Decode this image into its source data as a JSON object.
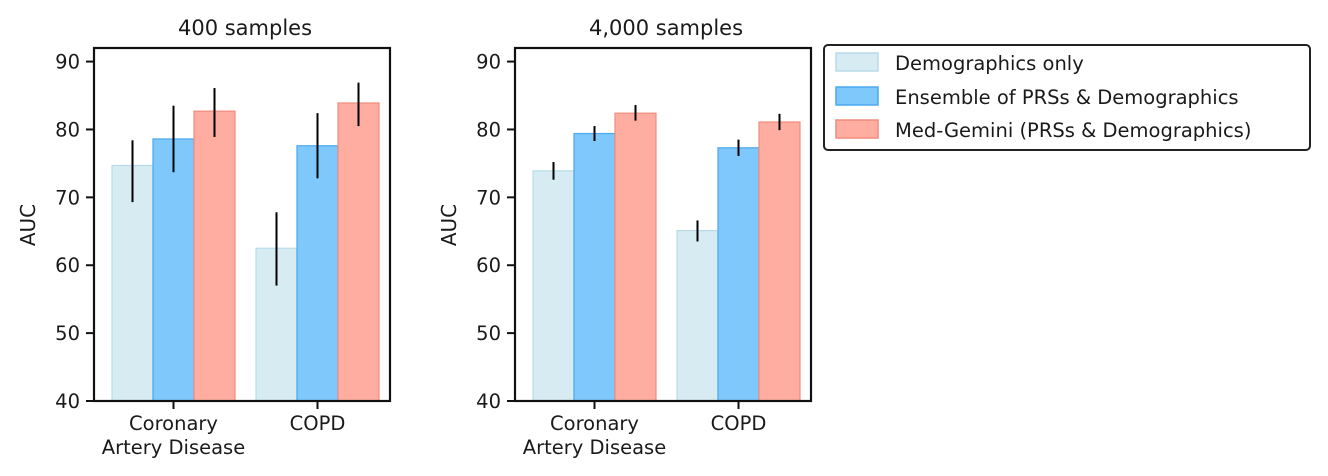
{
  "colors": {
    "demographics": "#d6ebf2",
    "demographics_edge": "#b9dbe8",
    "ensemble": "#7ec8fc",
    "ensemble_edge": "#4aa8ee",
    "medgemini": "#feada0",
    "medgemini_edge": "#f08c7c"
  },
  "chart_data": [
    {
      "type": "bar",
      "title": "400 samples",
      "ylabel": "AUC",
      "ylim": [
        40,
        92
      ],
      "yticks": [
        "40",
        "50",
        "60",
        "70",
        "80",
        "90"
      ],
      "categories": [
        {
          "line1": "Coronary",
          "line2": "Artery Disease"
        },
        {
          "line1": "COPD",
          "line2": ""
        }
      ],
      "series": [
        {
          "name": "Demographics only",
          "values": [
            74.7,
            62.5
          ],
          "err_low": [
            69.3,
            57.0
          ],
          "err_high": [
            78.4,
            67.8
          ]
        },
        {
          "name": "Ensemble of PRSs & Demographics",
          "values": [
            78.6,
            77.6
          ],
          "err_low": [
            73.7,
            72.8
          ],
          "err_high": [
            83.5,
            82.4
          ]
        },
        {
          "name": "Med-Gemini (PRSs & Demographics)",
          "values": [
            82.7,
            83.9
          ],
          "err_low": [
            78.9,
            80.5
          ],
          "err_high": [
            86.1,
            86.9
          ]
        }
      ]
    },
    {
      "type": "bar",
      "title": "4,000 samples",
      "ylabel": "AUC",
      "ylim": [
        40,
        92
      ],
      "yticks": [
        "40",
        "50",
        "60",
        "70",
        "80",
        "90"
      ],
      "categories": [
        {
          "line1": "Coronary",
          "line2": "Artery Disease"
        },
        {
          "line1": "COPD",
          "line2": ""
        }
      ],
      "series": [
        {
          "name": "Demographics only",
          "values": [
            73.9,
            65.1
          ],
          "err_low": [
            72.6,
            63.5
          ],
          "err_high": [
            75.2,
            66.6
          ]
        },
        {
          "name": "Ensemble of PRSs & Demographics",
          "values": [
            79.4,
            77.3
          ],
          "err_low": [
            78.3,
            76.1
          ],
          "err_high": [
            80.5,
            78.5
          ]
        },
        {
          "name": "Med-Gemini (PRSs & Demographics)",
          "values": [
            82.4,
            81.1
          ],
          "err_low": [
            81.3,
            79.9
          ],
          "err_high": [
            83.6,
            82.3
          ]
        }
      ]
    }
  ],
  "legend": {
    "placement": "right of charts, top",
    "items": [
      "Demographics only",
      "Ensemble of PRSs & Demographics",
      "Med-Gemini (PRSs & Demographics)"
    ]
  }
}
